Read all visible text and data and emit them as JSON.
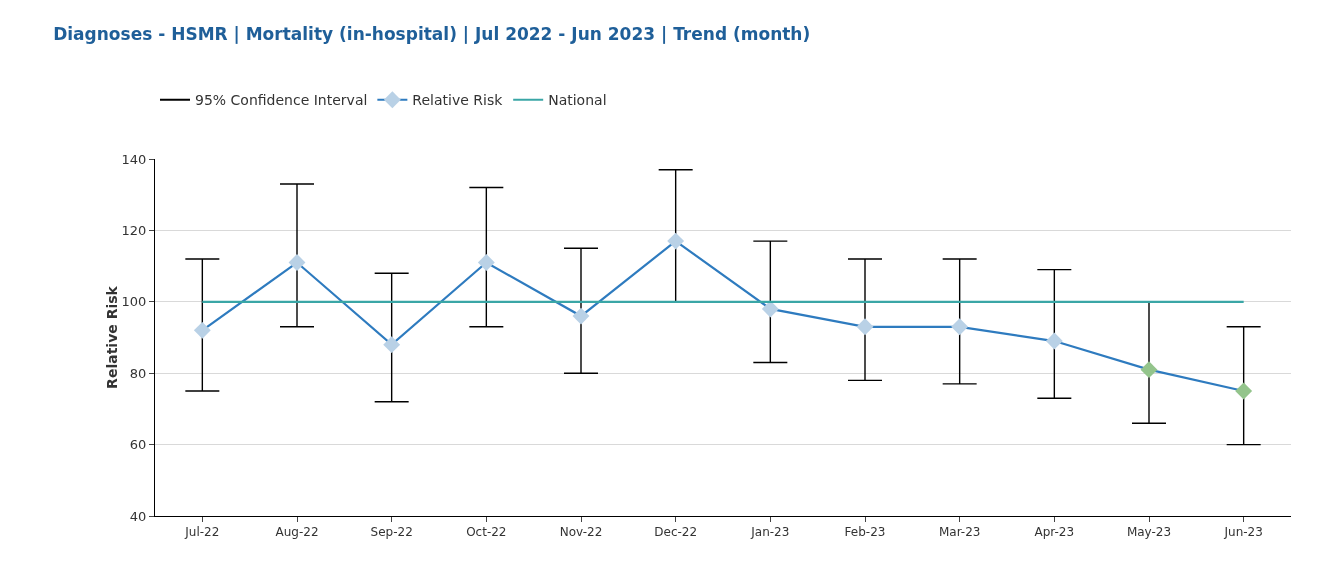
{
  "chart_data": {
    "type": "line",
    "title": "Diagnoses - HSMR | Mortality (in-hospital) | Jul 2022 - Jun 2023 | Trend (month)",
    "ylabel": "Relative Risk",
    "categories": [
      "Jul-22",
      "Aug-22",
      "Sep-22",
      "Oct-22",
      "Nov-22",
      "Dec-22",
      "Jan-23",
      "Feb-23",
      "Mar-23",
      "Apr-23",
      "May-23",
      "Jun-23"
    ],
    "series": [
      {
        "name": "95% Confidence Interval",
        "color": "#000000",
        "marker": "none",
        "values": [
          null,
          null,
          null,
          null,
          null,
          null,
          null,
          null,
          null,
          null,
          null,
          null
        ]
      },
      {
        "name": "Relative Risk",
        "color": "#2e7bbf",
        "marker": "diamond",
        "values": [
          92,
          111,
          88,
          111,
          96,
          117,
          98,
          93,
          93,
          89,
          81,
          75
        ],
        "colors": [
          "#b9d1e6",
          "#b9d1e6",
          "#b9d1e6",
          "#b9d1e6",
          "#b9d1e6",
          "#b9d1e6",
          "#b9d1e6",
          "#b9d1e6",
          "#b9d1e6",
          "#b9d1e6",
          "#93c48b",
          "#93c48b"
        ],
        "errors": [
          [
            75,
            112
          ],
          [
            93,
            133
          ],
          [
            72,
            108
          ],
          [
            93,
            132
          ],
          [
            80,
            115
          ],
          [
            100,
            137
          ],
          [
            83,
            117
          ],
          [
            78,
            112
          ],
          [
            77,
            112
          ],
          [
            73,
            109
          ],
          [
            66,
            100
          ],
          [
            60,
            93
          ]
        ]
      },
      {
        "name": "National",
        "color": "#3aa6a6",
        "marker": "none",
        "values": [
          100,
          100,
          100,
          100,
          100,
          100,
          100,
          100,
          100,
          100,
          100,
          100
        ]
      }
    ],
    "ylim": [
      40,
      140
    ],
    "yticks": [
      40,
      60,
      80,
      100,
      120,
      140
    ],
    "grid": "y",
    "legend": "top left",
    "line_style": "solid"
  }
}
